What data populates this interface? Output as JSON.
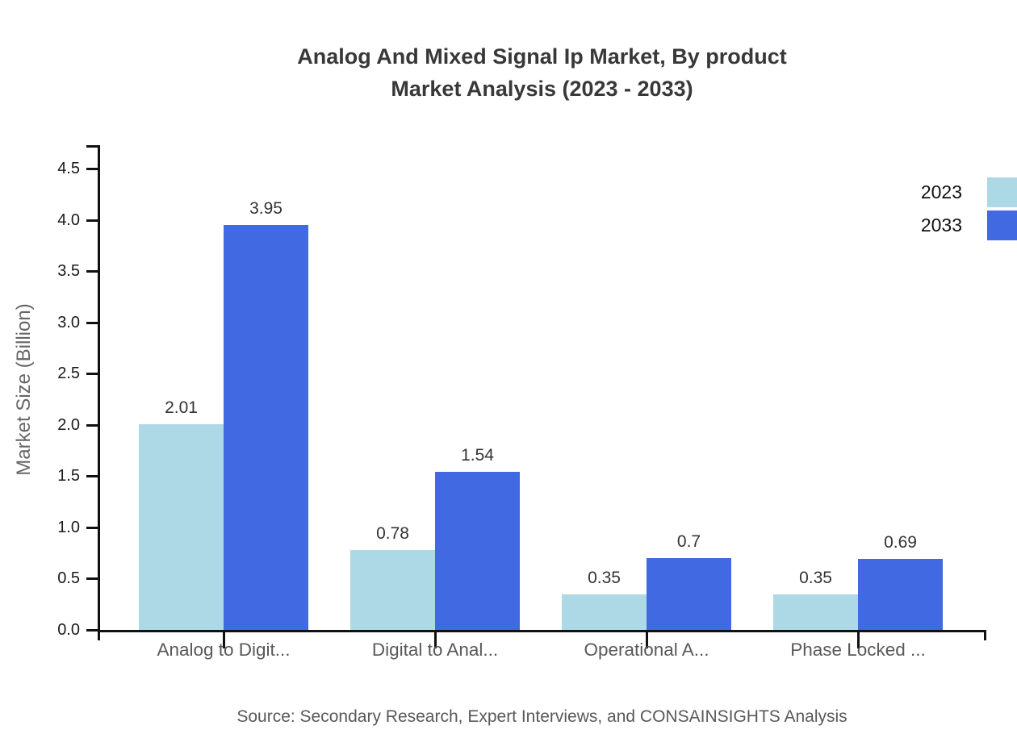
{
  "title": {
    "line1": "Analog And Mixed Signal Ip Market, By product",
    "line2": "Market Analysis (2023 - 2033)"
  },
  "source": "Source: Secondary Research, Expert Interviews, and CONSAINSIGHTS Analysis",
  "chart_data": {
    "type": "bar",
    "title": "Analog And Mixed Signal Ip Market, By product Market Analysis (2023 - 2033)",
    "categories": [
      "Analog to Digit...",
      "Digital to Anal...",
      "Operational A...",
      "Phase Locked ..."
    ],
    "series": [
      {
        "name": "2023",
        "color": "#ADD8E6",
        "values": [
          2.01,
          0.78,
          0.35,
          0.35
        ]
      },
      {
        "name": "2033",
        "color": "#4169E1",
        "values": [
          3.95,
          1.54,
          0.7,
          0.69
        ]
      }
    ],
    "xlabel": "",
    "ylabel": "Market Size (Billion)",
    "yticks": [
      0.0,
      0.5,
      1.0,
      1.5,
      2.0,
      2.5,
      3.0,
      3.5,
      4.0,
      4.5
    ],
    "ylim": [
      0,
      4.73
    ],
    "grid": false,
    "legend_position": "top-right",
    "value_labels": true,
    "axis_color": "#111111",
    "tick_label_color": "#1a1a1a",
    "value_label_color": "#333333",
    "category_label_color": "#595959"
  }
}
